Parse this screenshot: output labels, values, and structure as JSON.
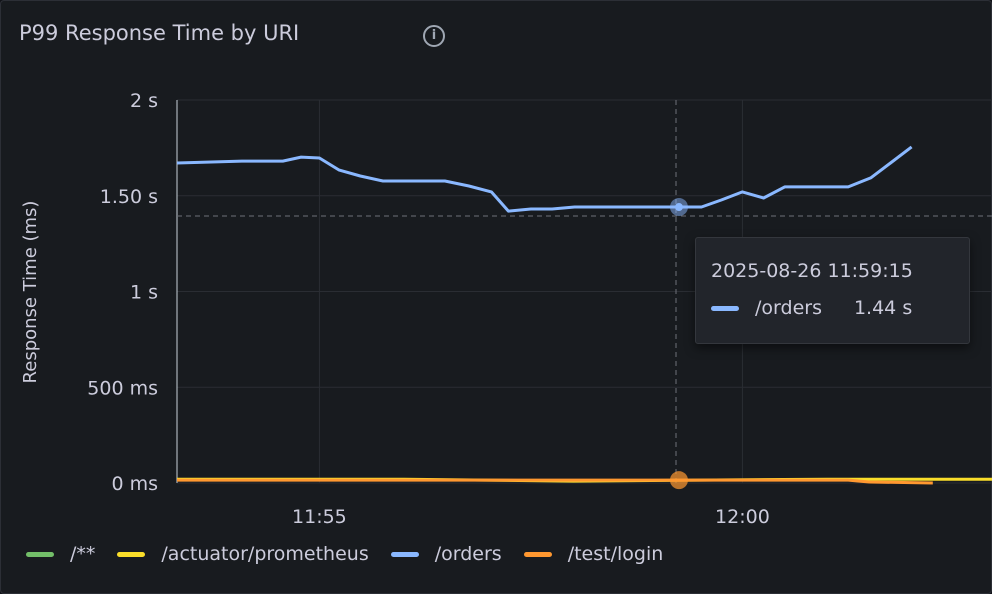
{
  "panel": {
    "title": "P99 Response Time by URI",
    "info_icon": "info-circle-icon"
  },
  "tooltip": {
    "time": "2025-08-26 11:59:15",
    "series": "/orders",
    "value": "1.44 s",
    "color": "#8ab8ff"
  },
  "chart_data": {
    "type": "line",
    "title": "P99 Response Time by URI",
    "ylabel": "Response Time (ms)",
    "xlabel": "",
    "ylim": [
      0,
      2
    ],
    "yticks": [
      {
        "v": 0,
        "label": "0 ms"
      },
      {
        "v": 0.5,
        "label": "500 ms"
      },
      {
        "v": 1,
        "label": "1 s"
      },
      {
        "v": 1.5,
        "label": "1.50 s"
      },
      {
        "v": 2,
        "label": "2 s"
      }
    ],
    "xlim": [
      "11:53:19",
      "12:02:57"
    ],
    "xticks": [
      "11:55",
      "12:00"
    ],
    "grid": true,
    "legend": "bottom",
    "series": [
      {
        "name": "/**",
        "color": "#73bf69",
        "points": []
      },
      {
        "name": "/actuator/prometheus",
        "color": "#fade2a",
        "points": [
          [
            "11:53:19",
            0.02
          ],
          [
            "11:56:00",
            0.02
          ],
          [
            "11:58:00",
            0.01
          ],
          [
            "12:01:00",
            0.02
          ],
          [
            "12:02:57",
            0.02
          ]
        ]
      },
      {
        "name": "/orders",
        "color": "#8ab8ff",
        "points": [
          [
            "11:53:19",
            1.671
          ],
          [
            "11:54:05",
            1.681
          ],
          [
            "11:54:34",
            1.681
          ],
          [
            "11:54:47",
            1.702
          ],
          [
            "11:55:00",
            1.697
          ],
          [
            "11:55:14",
            1.634
          ],
          [
            "11:55:29",
            1.603
          ],
          [
            "11:55:45",
            1.577
          ],
          [
            "11:56:29",
            1.577
          ],
          [
            "11:56:46",
            1.551
          ],
          [
            "11:57:02",
            1.52
          ],
          [
            "11:57:14",
            1.42
          ],
          [
            "11:57:30",
            1.431
          ],
          [
            "11:57:45",
            1.431
          ],
          [
            "11:58:01",
            1.441
          ],
          [
            "11:59:15",
            1.441
          ],
          [
            "11:59:31",
            1.441
          ],
          [
            "11:59:45",
            1.478
          ],
          [
            "12:00:00",
            1.52
          ],
          [
            "12:00:15",
            1.488
          ],
          [
            "12:00:30",
            1.546
          ],
          [
            "12:01:15",
            1.546
          ],
          [
            "12:01:31",
            1.593
          ],
          [
            "12:01:45",
            1.671
          ],
          [
            "12:02:00",
            1.755
          ]
        ]
      },
      {
        "name": "/test/login",
        "color": "#ff9830",
        "points": [
          [
            "11:53:19",
            0.015
          ],
          [
            "11:59:15",
            0.015
          ],
          [
            "12:01:15",
            0.015
          ],
          [
            "12:01:30",
            0.005
          ],
          [
            "12:02:15",
            0.0
          ]
        ]
      }
    ]
  }
}
